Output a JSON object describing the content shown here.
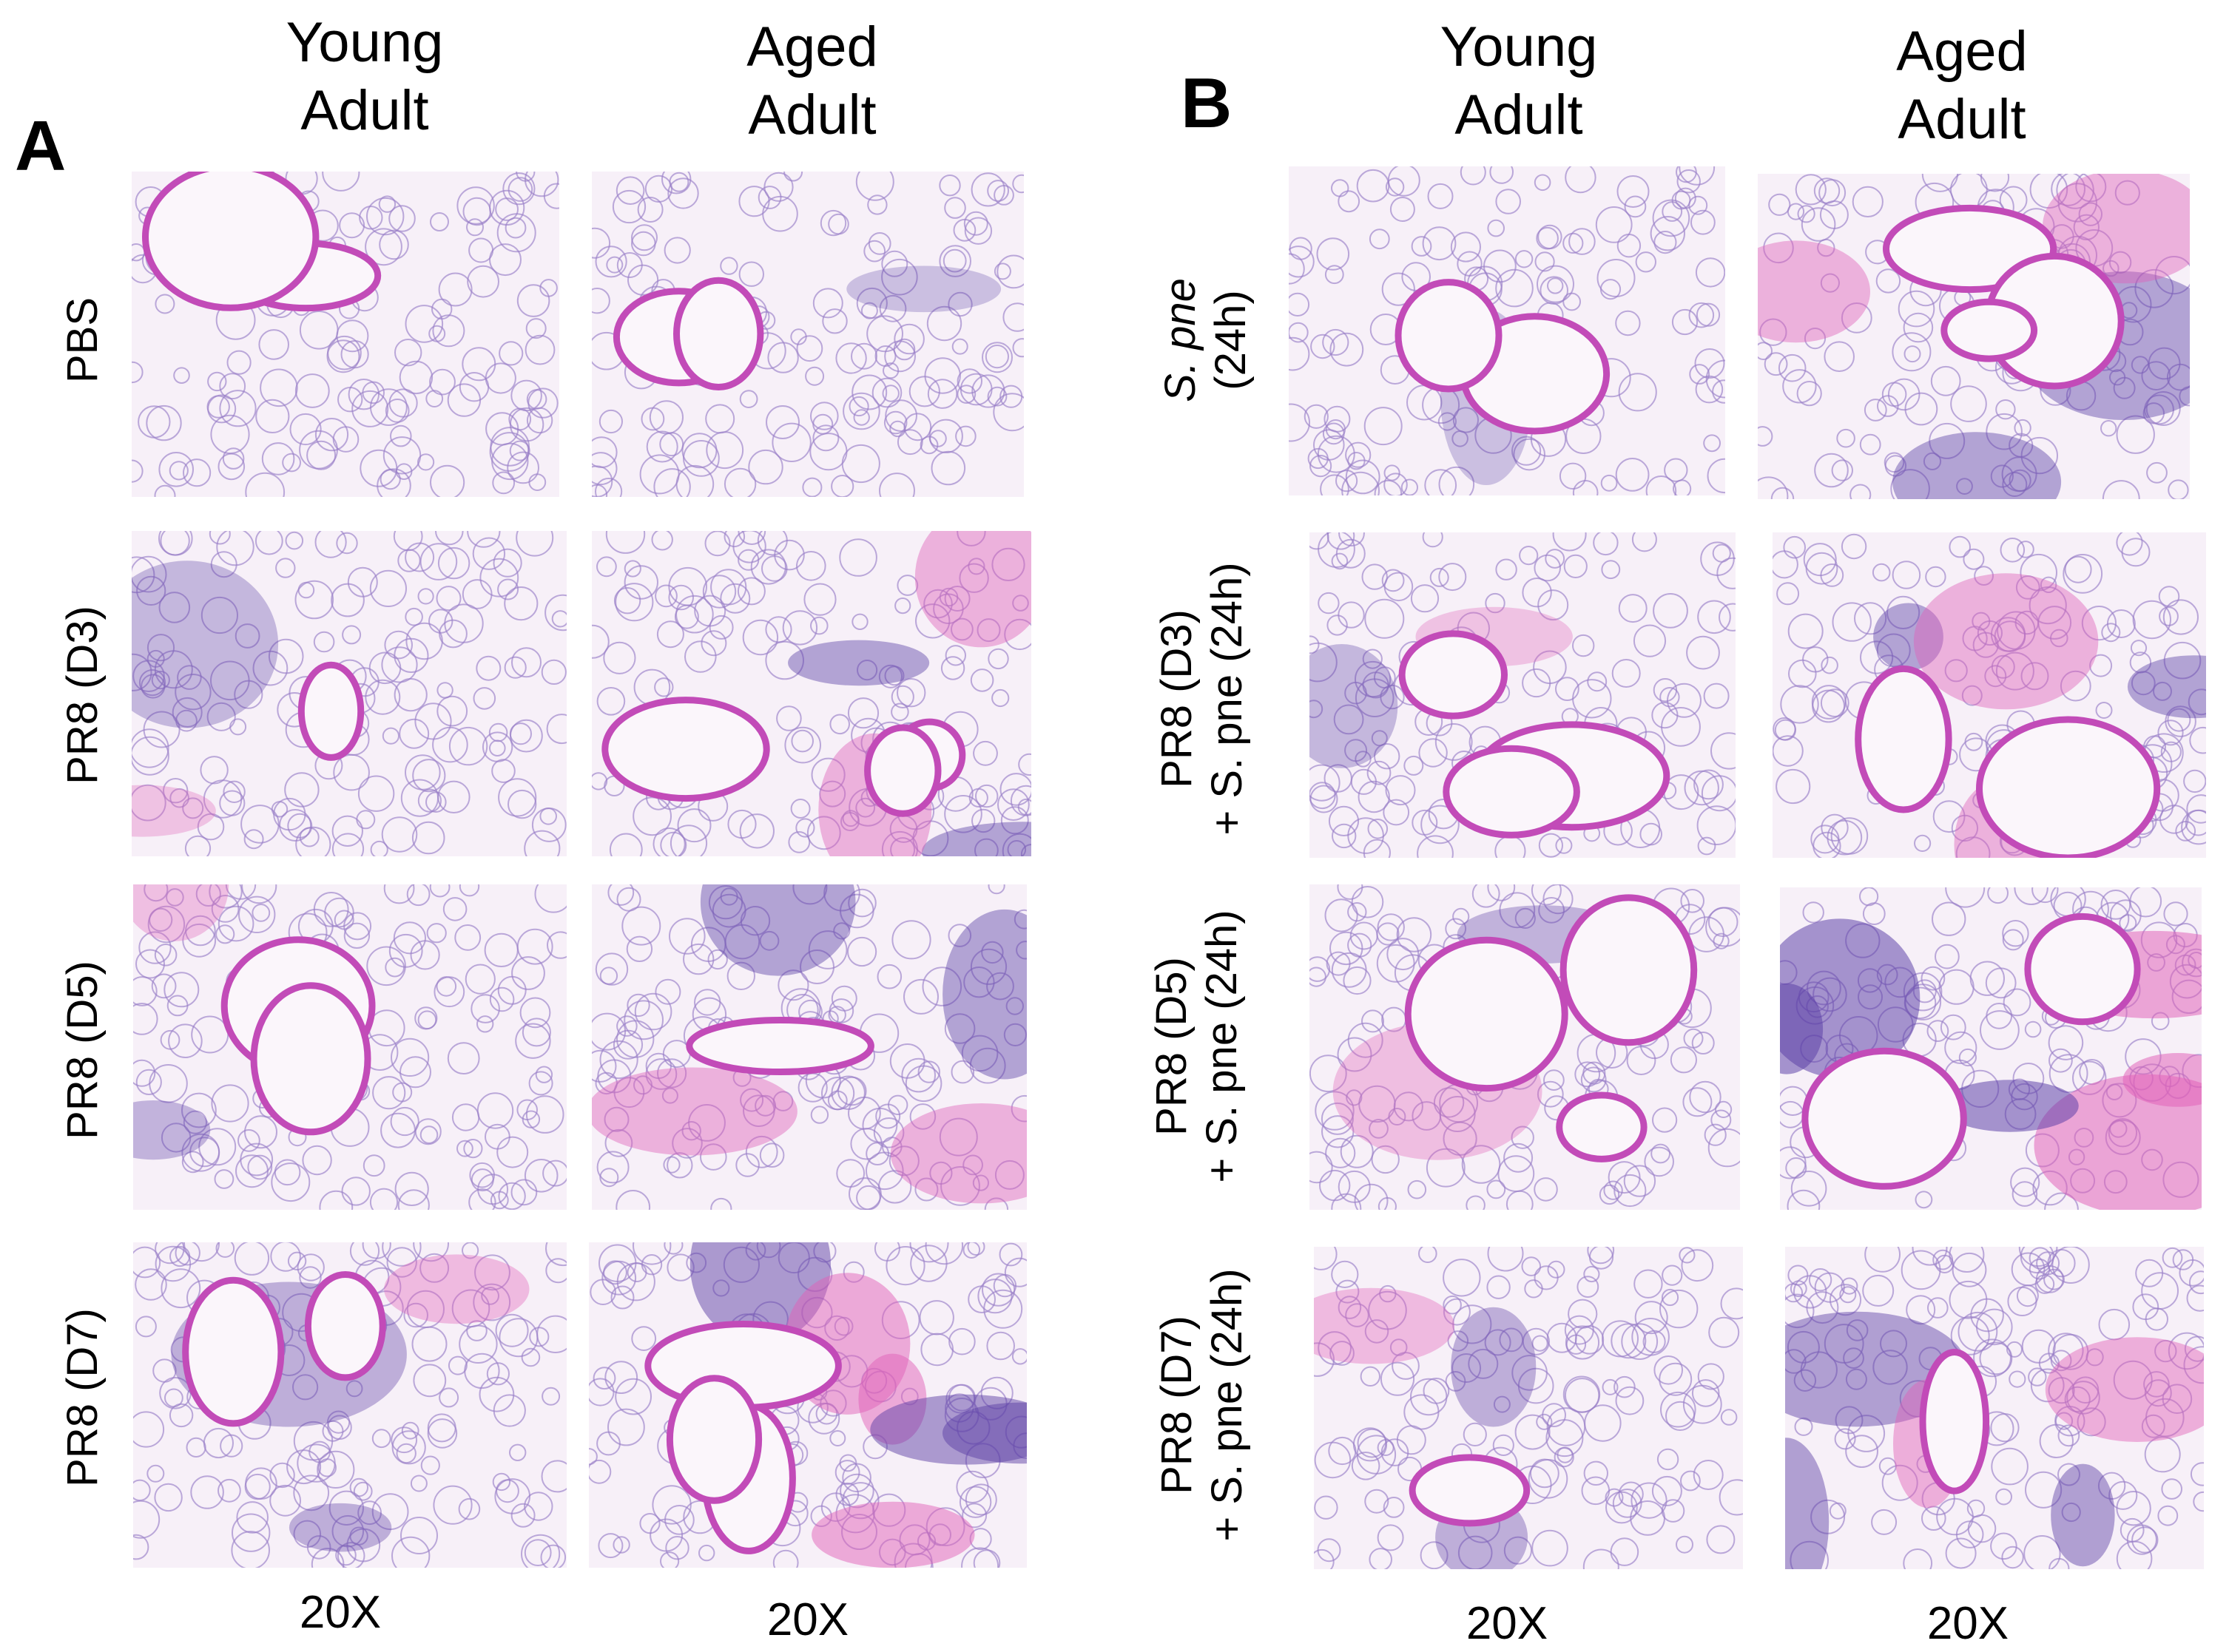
{
  "panels": [
    {
      "letter": "A",
      "columns": [
        {
          "line1": "Young",
          "line2": "Adult"
        },
        {
          "line1": "Aged",
          "line2": "Adult"
        }
      ],
      "rows": [
        {
          "line1": "PBS",
          "line2": ""
        },
        {
          "line1": "PR8 (D3)",
          "line2": ""
        },
        {
          "line1": "PR8 (D5)",
          "line2": ""
        },
        {
          "line1": "PR8 (D7)",
          "line2": ""
        }
      ],
      "magnifications": [
        "20X",
        "20X"
      ]
    },
    {
      "letter": "B",
      "columns": [
        {
          "line1": "Young",
          "line2": "Adult"
        },
        {
          "line1": "Aged",
          "line2": "Adult"
        }
      ],
      "rows": [
        {
          "line1": "S. pne",
          "line2": "(24h)"
        },
        {
          "line1": "PR8 (D3)",
          "line2": "+ S. pne (24h)"
        },
        {
          "line1": "PR8  (D5)",
          "line2": "+ S. pne (24h)"
        },
        {
          "line1": "PR8 (D7)",
          "line2": "+ S. pne (24h)"
        }
      ],
      "magnifications": [
        "20X",
        "20X"
      ]
    }
  ],
  "colors": {
    "background_tissue": "#f7f0f8",
    "alveolar_wall": "#9a7fc8",
    "airway_wall": "#c24bb8",
    "infiltrate": "#5b3fa6",
    "eosin": "#e060b8"
  }
}
